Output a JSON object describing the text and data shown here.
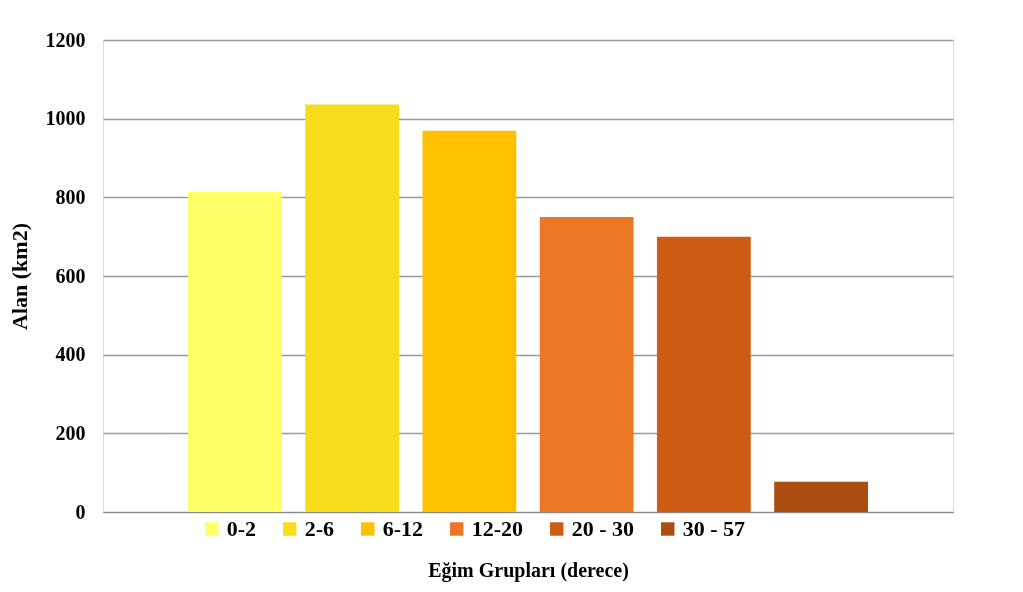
{
  "chart_data": {
    "type": "bar",
    "xlabel": "Eğim Grupları (derece)",
    "ylabel": "Alan (km2)",
    "categories": [
      null
    ],
    "series": [
      {
        "name": "0-2",
        "color": "#ffff66",
        "values": [
          814
        ]
      },
      {
        "name": "2-6",
        "color": "#f6dc1a",
        "values": [
          1036
        ]
      },
      {
        "name": "6-12",
        "color": "#ffc000",
        "values": [
          969
        ]
      },
      {
        "name": "12-20",
        "color": "#eb7624",
        "values": [
          750
        ]
      },
      {
        "name": "20 - 30",
        "color": "#cd5c14",
        "values": [
          700
        ]
      },
      {
        "name": "30 - 57",
        "color": "#aa4d10",
        "values": [
          77
        ]
      }
    ],
    "ylim": [
      0,
      1200
    ],
    "yticks": [
      0,
      200,
      400,
      600,
      800,
      1000,
      1200
    ],
    "grid": "y",
    "legend": "bottom",
    "tick_labels": "y"
  }
}
